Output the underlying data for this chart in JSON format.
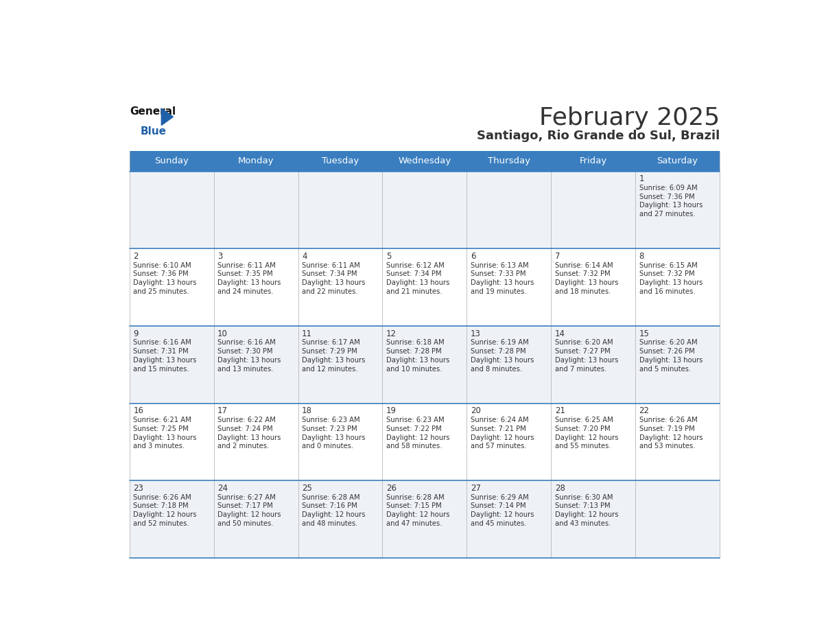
{
  "title": "February 2025",
  "subtitle": "Santiago, Rio Grande do Sul, Brazil",
  "header_bg": "#3a7ebf",
  "header_text": "#ffffff",
  "cell_bg_row0": "#eef2f7",
  "cell_bg_row1": "#ffffff",
  "cell_bg_row2": "#eef2f7",
  "cell_bg_row3": "#ffffff",
  "cell_bg_row4": "#eef2f7",
  "row_line_color": "#3a7ebf",
  "grid_line_color": "#aaaaaa",
  "days_of_week": [
    "Sunday",
    "Monday",
    "Tuesday",
    "Wednesday",
    "Thursday",
    "Friday",
    "Saturday"
  ],
  "calendar": [
    [
      {
        "day": null
      },
      {
        "day": null
      },
      {
        "day": null
      },
      {
        "day": null
      },
      {
        "day": null
      },
      {
        "day": null
      },
      {
        "day": 1,
        "sunrise": "6:09 AM",
        "sunset": "7:36 PM",
        "daylight": "13 hours\nand 27 minutes."
      }
    ],
    [
      {
        "day": 2,
        "sunrise": "6:10 AM",
        "sunset": "7:36 PM",
        "daylight": "13 hours\nand 25 minutes."
      },
      {
        "day": 3,
        "sunrise": "6:11 AM",
        "sunset": "7:35 PM",
        "daylight": "13 hours\nand 24 minutes."
      },
      {
        "day": 4,
        "sunrise": "6:11 AM",
        "sunset": "7:34 PM",
        "daylight": "13 hours\nand 22 minutes."
      },
      {
        "day": 5,
        "sunrise": "6:12 AM",
        "sunset": "7:34 PM",
        "daylight": "13 hours\nand 21 minutes."
      },
      {
        "day": 6,
        "sunrise": "6:13 AM",
        "sunset": "7:33 PM",
        "daylight": "13 hours\nand 19 minutes."
      },
      {
        "day": 7,
        "sunrise": "6:14 AM",
        "sunset": "7:32 PM",
        "daylight": "13 hours\nand 18 minutes."
      },
      {
        "day": 8,
        "sunrise": "6:15 AM",
        "sunset": "7:32 PM",
        "daylight": "13 hours\nand 16 minutes."
      }
    ],
    [
      {
        "day": 9,
        "sunrise": "6:16 AM",
        "sunset": "7:31 PM",
        "daylight": "13 hours\nand 15 minutes."
      },
      {
        "day": 10,
        "sunrise": "6:16 AM",
        "sunset": "7:30 PM",
        "daylight": "13 hours\nand 13 minutes."
      },
      {
        "day": 11,
        "sunrise": "6:17 AM",
        "sunset": "7:29 PM",
        "daylight": "13 hours\nand 12 minutes."
      },
      {
        "day": 12,
        "sunrise": "6:18 AM",
        "sunset": "7:28 PM",
        "daylight": "13 hours\nand 10 minutes."
      },
      {
        "day": 13,
        "sunrise": "6:19 AM",
        "sunset": "7:28 PM",
        "daylight": "13 hours\nand 8 minutes."
      },
      {
        "day": 14,
        "sunrise": "6:20 AM",
        "sunset": "7:27 PM",
        "daylight": "13 hours\nand 7 minutes."
      },
      {
        "day": 15,
        "sunrise": "6:20 AM",
        "sunset": "7:26 PM",
        "daylight": "13 hours\nand 5 minutes."
      }
    ],
    [
      {
        "day": 16,
        "sunrise": "6:21 AM",
        "sunset": "7:25 PM",
        "daylight": "13 hours\nand 3 minutes."
      },
      {
        "day": 17,
        "sunrise": "6:22 AM",
        "sunset": "7:24 PM",
        "daylight": "13 hours\nand 2 minutes."
      },
      {
        "day": 18,
        "sunrise": "6:23 AM",
        "sunset": "7:23 PM",
        "daylight": "13 hours\nand 0 minutes."
      },
      {
        "day": 19,
        "sunrise": "6:23 AM",
        "sunset": "7:22 PM",
        "daylight": "12 hours\nand 58 minutes."
      },
      {
        "day": 20,
        "sunrise": "6:24 AM",
        "sunset": "7:21 PM",
        "daylight": "12 hours\nand 57 minutes."
      },
      {
        "day": 21,
        "sunrise": "6:25 AM",
        "sunset": "7:20 PM",
        "daylight": "12 hours\nand 55 minutes."
      },
      {
        "day": 22,
        "sunrise": "6:26 AM",
        "sunset": "7:19 PM",
        "daylight": "12 hours\nand 53 minutes."
      }
    ],
    [
      {
        "day": 23,
        "sunrise": "6:26 AM",
        "sunset": "7:18 PM",
        "daylight": "12 hours\nand 52 minutes."
      },
      {
        "day": 24,
        "sunrise": "6:27 AM",
        "sunset": "7:17 PM",
        "daylight": "12 hours\nand 50 minutes."
      },
      {
        "day": 25,
        "sunrise": "6:28 AM",
        "sunset": "7:16 PM",
        "daylight": "12 hours\nand 48 minutes."
      },
      {
        "day": 26,
        "sunrise": "6:28 AM",
        "sunset": "7:15 PM",
        "daylight": "12 hours\nand 47 minutes."
      },
      {
        "day": 27,
        "sunrise": "6:29 AM",
        "sunset": "7:14 PM",
        "daylight": "12 hours\nand 45 minutes."
      },
      {
        "day": 28,
        "sunrise": "6:30 AM",
        "sunset": "7:13 PM",
        "daylight": "12 hours\nand 43 minutes."
      },
      {
        "day": null
      }
    ]
  ],
  "logo_general_color": "#111111",
  "logo_blue_color": "#2060a8",
  "logo_triangle_color": "#2060a8",
  "text_color": "#333333",
  "day_num_fontsize": 8.5,
  "info_fontsize": 7.2,
  "header_fontsize": 9.5,
  "title_fontsize": 26,
  "subtitle_fontsize": 13
}
